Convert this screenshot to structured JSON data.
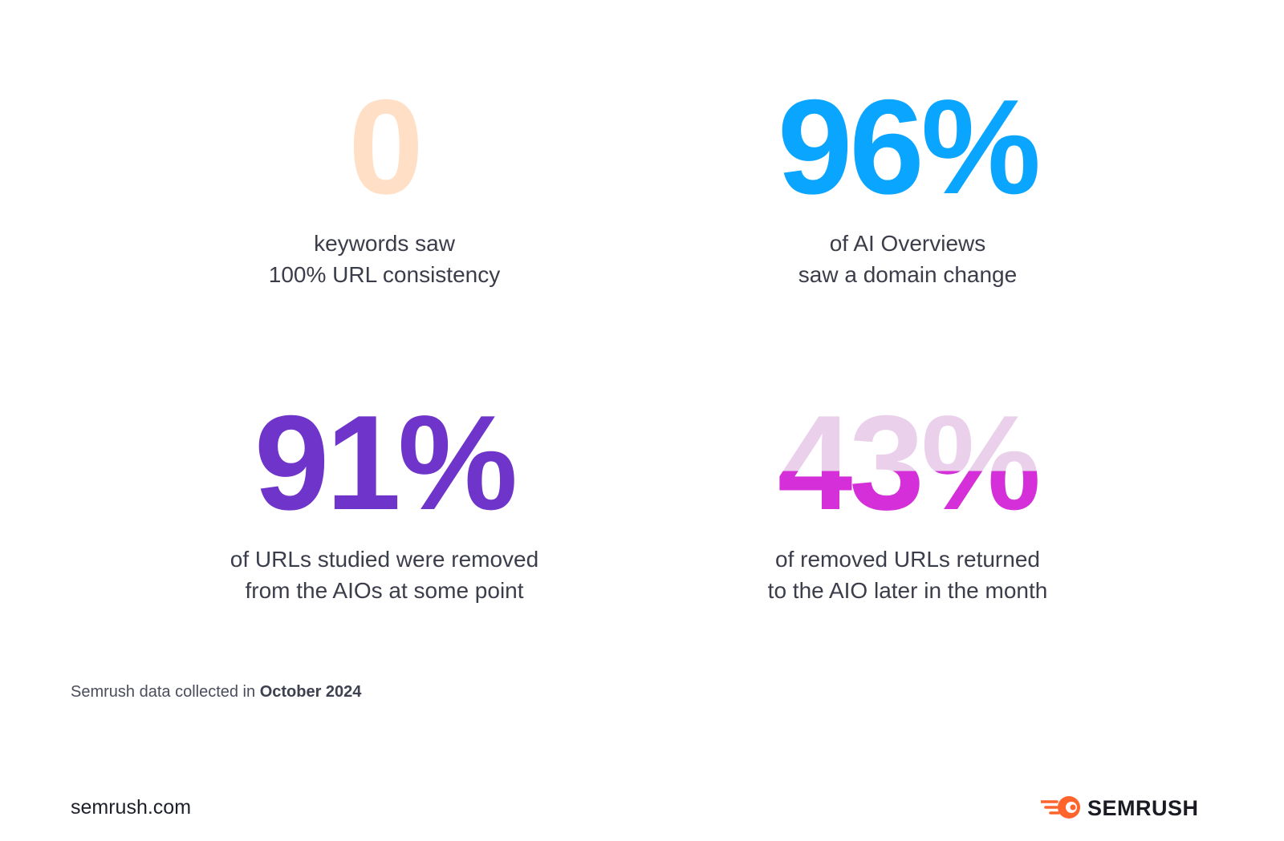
{
  "stats": [
    {
      "value": "0",
      "color": "#ffe0c6",
      "fade_color": "#ffe0c6",
      "fill_fraction": 1.0,
      "line1": "keywords saw",
      "line2": "100% URL consistency"
    },
    {
      "value": "96%",
      "color": "#0aa5ff",
      "fade_color": "#cfe9f8",
      "fill_fraction": 0.96,
      "line1": "of AI Overviews",
      "line2": "saw a domain change"
    },
    {
      "value": "91%",
      "color": "#6f34c9",
      "fade_color": "#e2d6f0",
      "fill_fraction": 0.91,
      "line1": "of URLs studied were removed",
      "line2": "from the AIOs at some point"
    },
    {
      "value": "43%",
      "color": "#d42fd8",
      "fade_color": "#ead0eb",
      "fill_fraction": 0.43,
      "line1": "of removed URLs returned",
      "line2": "to the AIO later in the month"
    }
  ],
  "footnote": {
    "prefix": "Semrush data collected in ",
    "date": "October 2024"
  },
  "site": "semrush.com",
  "brand": {
    "name": "SEMRUSH",
    "logo_icon": "semrush-fireball-icon",
    "accent": "#ff642d"
  }
}
